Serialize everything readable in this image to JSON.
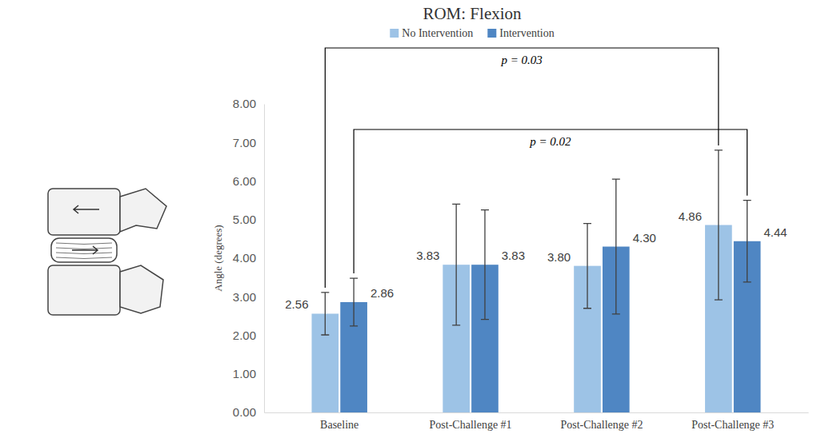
{
  "chart_data": {
    "type": "bar",
    "title": "ROM: Flexion",
    "y_label": "Angle (degrees)",
    "categories": [
      "Baseline",
      "Post-Challenge #1",
      "Post-Challenge #2",
      "Post-Challenge #3"
    ],
    "series": [
      {
        "name": "No Intervention",
        "color": "#9DC3E6",
        "values": [
          2.56,
          3.83,
          3.8,
          4.86
        ],
        "value_labels": [
          "2.56",
          "3.83",
          "3.80",
          "4.86"
        ],
        "errors": [
          0.55,
          1.57,
          1.1,
          1.94
        ]
      },
      {
        "name": "Intervention",
        "color": "#4F86C3",
        "values": [
          2.86,
          3.83,
          4.3,
          4.44
        ],
        "value_labels": [
          "2.86",
          "3.83",
          "4.30",
          "4.44"
        ],
        "errors": [
          0.62,
          1.42,
          1.75,
          1.06
        ]
      }
    ],
    "ylim": [
      0,
      8
    ],
    "yticks": [
      {
        "value": 0,
        "label": "0.00"
      },
      {
        "value": 1,
        "label": "1.00"
      },
      {
        "value": 2,
        "label": "2.00"
      },
      {
        "value": 3,
        "label": "3.00"
      },
      {
        "value": 4,
        "label": "4.00"
      },
      {
        "value": 5,
        "label": "5.00"
      },
      {
        "value": 6,
        "label": "6.00"
      },
      {
        "value": 7,
        "label": "7.00"
      },
      {
        "value": 8,
        "label": "8.00"
      }
    ],
    "grid": false,
    "legend": "top",
    "data_labels": true,
    "annotations": [
      {
        "text": "p = 0.03",
        "series": 0,
        "from": 0,
        "to": 3
      },
      {
        "text": "p = 0.02",
        "series": 1,
        "from": 0,
        "to": 3
      }
    ]
  }
}
